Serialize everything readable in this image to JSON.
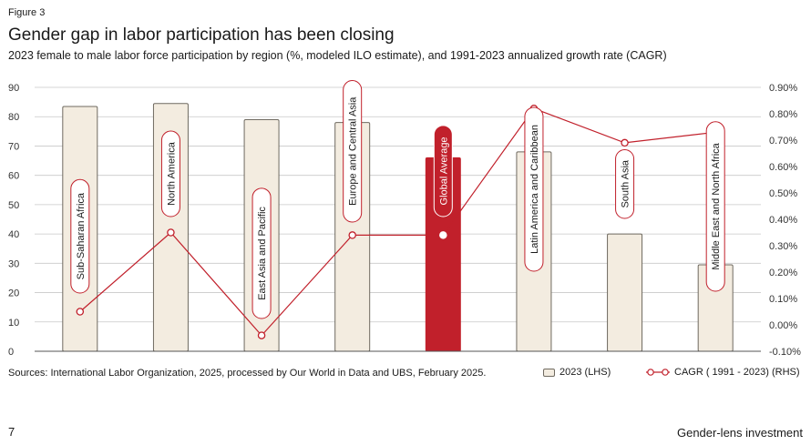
{
  "figure_label": "Figure 3",
  "footer": {
    "sources": "Sources: International Labor Organization, 2025, processed by Our World in Data and UBS, February 2025.",
    "page_number": "7",
    "section": "Gender-lens investment"
  },
  "colors": {
    "bar_fill": "#f3ece0",
    "bar_stroke": "#6f6a60",
    "highlight_fill": "#c1202b",
    "line": "#c1202b",
    "grid": "#c8c8c8"
  },
  "chart_data": {
    "type": "bar",
    "title": "Gender gap in labor participation has been closing",
    "subtitle": "2023 female to male labor force participation by region (%, modeled ILO estimate), and 1991-2023 annualized growth rate (CAGR)",
    "categories": [
      "Sub-Saharan Africa",
      "North America",
      "East Asia and Pacific",
      "Europe and Central Asia",
      "Global Average",
      "Latin America and Caribbean",
      "South Asia",
      "Middle East and North Africa"
    ],
    "highlight_category": "Global Average",
    "series": [
      {
        "name": "2023 (LHS)",
        "type": "bar",
        "axis": "left",
        "values": [
          83.5,
          84.5,
          79,
          78,
          66,
          68,
          40,
          29.5
        ]
      },
      {
        "name": "CAGR ( 1991 - 2023) (RHS)",
        "type": "line",
        "axis": "right",
        "values": [
          0.05,
          0.35,
          -0.04,
          0.34,
          0.34,
          0.82,
          0.69,
          0.73
        ]
      }
    ],
    "left_axis": {
      "ylim": [
        0,
        90
      ],
      "ticks": [
        0,
        10,
        20,
        30,
        40,
        50,
        60,
        70,
        80,
        90
      ],
      "tick_labels": [
        "0",
        "10",
        "20",
        "30",
        "40",
        "50",
        "60",
        "70",
        "80",
        "90"
      ]
    },
    "right_axis": {
      "ylim": [
        -0.1,
        0.9
      ],
      "ticks": [
        -0.1,
        0.0,
        0.1,
        0.2,
        0.3,
        0.4,
        0.5,
        0.6,
        0.7,
        0.8,
        0.9
      ],
      "tick_labels": [
        "-0.10%",
        "0.00%",
        "0.10%",
        "0.20%",
        "0.30%",
        "0.40%",
        "0.50%",
        "0.60%",
        "0.70%",
        "0.80%",
        "0.90%"
      ]
    },
    "grid": true,
    "legend_position": "bottom-right"
  }
}
